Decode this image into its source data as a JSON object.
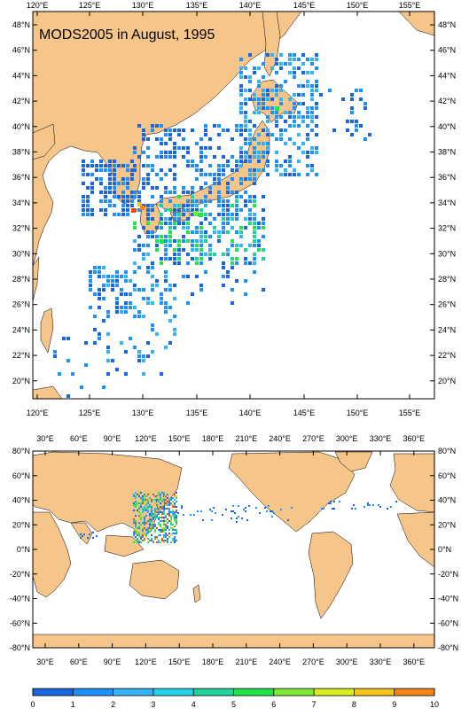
{
  "top_map": {
    "title": "MODS2005 in August, 1995",
    "lon_labels": [
      "120°E",
      "125°E",
      "130°E",
      "135°E",
      "140°E",
      "145°E",
      "150°E",
      "155°E"
    ],
    "lat_labels": [
      "48°N",
      "46°N",
      "44°N",
      "42°N",
      "40°N",
      "38°N",
      "36°N",
      "34°N",
      "32°N",
      "30°N",
      "28°N",
      "26°N",
      "24°N",
      "22°N",
      "20°N"
    ],
    "extent": {
      "lon": [
        119,
        158
      ],
      "lat": [
        18.5,
        49.5
      ]
    }
  },
  "bottom_map": {
    "lon_labels": [
      "30°E",
      "60°E",
      "90°E",
      "120°E",
      "150°E",
      "180°E",
      "210°E",
      "240°E",
      "270°E",
      "300°E",
      "330°E",
      "360°E"
    ],
    "lat_labels": [
      "80°N",
      "60°N",
      "40°N",
      "20°N",
      "0°N",
      "-20°N",
      "-40°N",
      "-60°N",
      "-80°N"
    ],
    "extent": {
      "lon": [
        20,
        380
      ],
      "lat": [
        -80,
        80
      ]
    }
  },
  "colorbar": {
    "labels": [
      "0",
      "1",
      "2",
      "3",
      "4",
      "5",
      "6",
      "7",
      "8",
      "9",
      "10"
    ],
    "colors": [
      "#1a66e0",
      "#1e90ff",
      "#33b5f5",
      "#22d3e8",
      "#1fd49a",
      "#21e34a",
      "#7ee832",
      "#d8ee1e",
      "#f7c51a",
      "#f5861a",
      "#ef4a16"
    ]
  },
  "colors": {
    "land": "#f5c58a",
    "ocean": "#ffffff"
  }
}
